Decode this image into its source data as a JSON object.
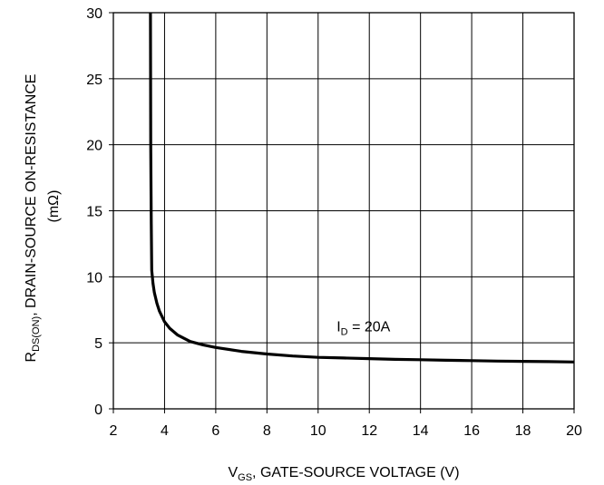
{
  "chart_data": {
    "type": "line",
    "xlabel": {
      "main": "V",
      "sub": "GS",
      "rest": ", GATE-SOURCE VOLTAGE (V)"
    },
    "ylabel": {
      "main": "R",
      "sub": "DS(ON)",
      "rest": ", DRAIN-SOURCE ON-RESISTANCE",
      "unit": "(mΩ)"
    },
    "xlim": [
      2,
      20
    ],
    "ylim": [
      0,
      30
    ],
    "xticks": [
      2,
      4,
      6,
      8,
      10,
      12,
      14,
      16,
      18,
      20
    ],
    "yticks": [
      0,
      5,
      10,
      15,
      20,
      25,
      30
    ],
    "grid": true,
    "annotation": {
      "main": "I",
      "sub": "D",
      "rest": " = 20A",
      "x": 12,
      "y": 6.5
    },
    "series": [
      {
        "x": [
          3.45,
          3.46,
          3.48,
          3.5,
          3.55,
          3.6,
          3.7,
          3.8,
          4.0,
          4.2,
          4.5,
          5.0,
          5.5,
          6.0,
          7.0,
          8.0,
          9.0,
          10.0,
          11.0,
          12.0,
          13.0,
          14.0,
          15.0,
          16.0,
          17.0,
          18.0,
          19.0,
          20.0
        ],
        "y": [
          30.0,
          20.0,
          14.0,
          10.5,
          9.5,
          8.8,
          8.0,
          7.4,
          6.6,
          6.1,
          5.6,
          5.1,
          4.85,
          4.65,
          4.35,
          4.15,
          4.0,
          3.9,
          3.85,
          3.8,
          3.75,
          3.72,
          3.68,
          3.65,
          3.62,
          3.6,
          3.58,
          3.55
        ]
      }
    ]
  }
}
